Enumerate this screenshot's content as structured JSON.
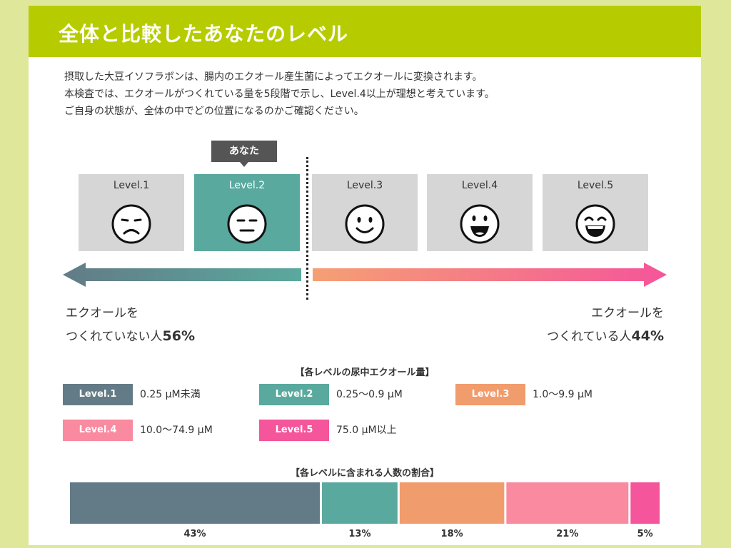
{
  "header": {
    "title": "全体と比較したあなたのレベル"
  },
  "intro": {
    "line1": "摂取した大豆イソフラボンは、腸内のエクオール産生菌によってエクオールに変換されます。",
    "line2": "本検査では、エクオールがつくれている量を5段階で示し、Level.4以上が理想と考えています。",
    "line3": "ご自身の状態が、全体の中でどの位置になるのかご確認ください。"
  },
  "you_badge": "あなた",
  "levels": [
    {
      "label": "Level.1",
      "face": "sad-face-icon"
    },
    {
      "label": "Level.2",
      "face": "neutral-face-icon",
      "active": true
    },
    {
      "label": "Level.3",
      "face": "smile-face-icon"
    },
    {
      "label": "Level.4",
      "face": "grin-face-icon"
    },
    {
      "label": "Level.5",
      "face": "laugh-face-icon"
    }
  ],
  "summary": {
    "left_line1": "エクオールを",
    "left_line2": "つくれていない人",
    "left_pct": "56%",
    "right_line1": "エクオールを",
    "right_line2": "つくれている人",
    "right_pct": "44%"
  },
  "legend": {
    "title": "【各レベルの尿中エクオール量】",
    "items": [
      {
        "label": "Level.1",
        "range": "0.25 μM未満",
        "color": "#637b86"
      },
      {
        "label": "Level.2",
        "range": "0.25〜0.9 μM",
        "color": "#5aa99e"
      },
      {
        "label": "Level.3",
        "range": "1.0〜9.9 μM",
        "color": "#f19c6c"
      },
      {
        "label": "Level.4",
        "range": "10.0〜74.9 μM",
        "color": "#f98aa0"
      },
      {
        "label": "Level.5",
        "range": "75.0 μM以上",
        "color": "#f5559a"
      }
    ]
  },
  "chart_data": {
    "type": "bar",
    "title": "【各レベルに含まれる人数の割合】",
    "orientation": "horizontal-stacked",
    "categories": [
      "Level.1",
      "Level.2",
      "Level.3",
      "Level.4",
      "Level.5"
    ],
    "values": [
      43,
      13,
      18,
      21,
      5
    ],
    "labels": [
      "43%",
      "13%",
      "18%",
      "21%",
      "5%"
    ],
    "colors": [
      "#637b86",
      "#5aa99e",
      "#f19c6c",
      "#f98aa0",
      "#f5559a"
    ],
    "xlim": [
      0,
      100
    ]
  }
}
